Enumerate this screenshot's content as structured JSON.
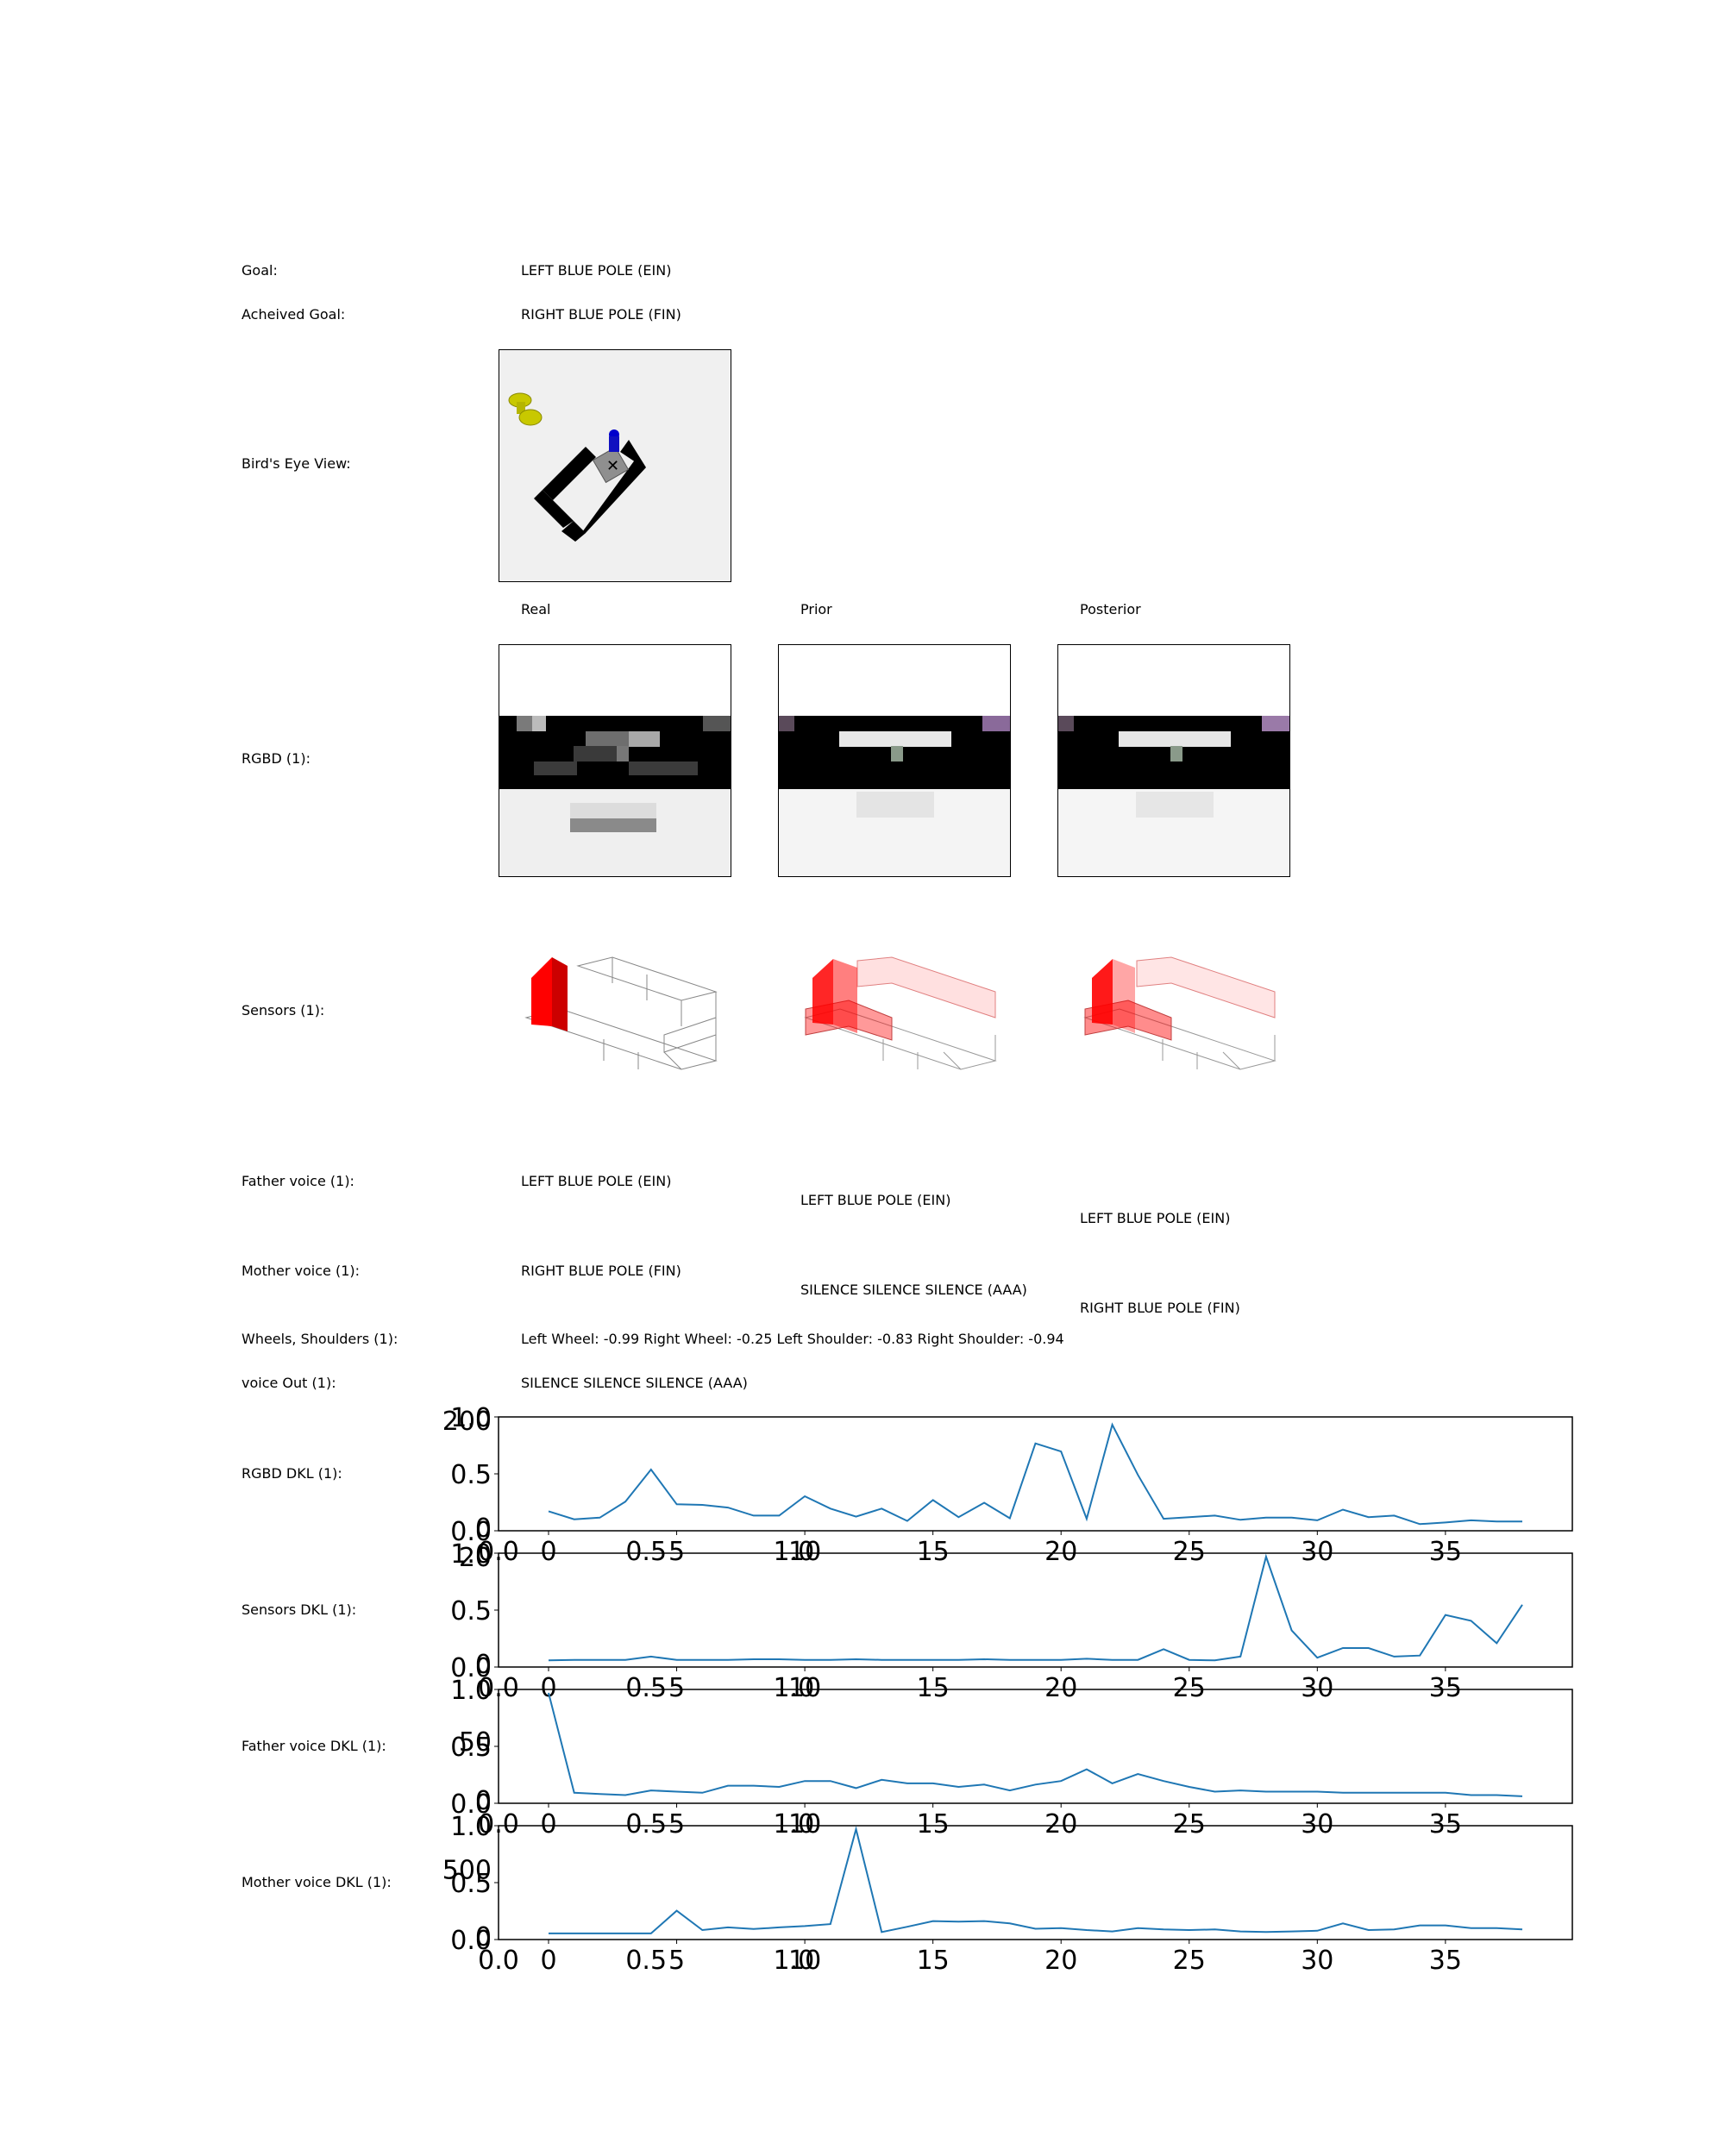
{
  "rows": {
    "goal": {
      "label": "Goal:",
      "value": "LEFT BLUE POLE (EIN)"
    },
    "achieved": {
      "label": "Acheived Goal:",
      "value": "RIGHT BLUE POLE (FIN)"
    },
    "birds_eye": {
      "label": "Bird's Eye View:"
    },
    "columns": {
      "real": "Real",
      "prior": "Prior",
      "posterior": "Posterior"
    },
    "rgbd": {
      "label": "RGBD (1):"
    },
    "sensors": {
      "label": "Sensors (1):"
    },
    "father_voice": {
      "label": "Father voice (1):",
      "real": "LEFT BLUE POLE (EIN)",
      "prior": "LEFT BLUE POLE (EIN)",
      "posterior": "LEFT BLUE POLE (EIN)"
    },
    "mother_voice": {
      "label": "Mother voice (1):",
      "real": "RIGHT BLUE POLE (FIN)",
      "prior": "SILENCE SILENCE SILENCE (AAA)",
      "posterior": "RIGHT BLUE POLE (FIN)"
    },
    "wheels": {
      "label": "Wheels, Shoulders (1):",
      "value": "Left Wheel: -0.99 Right Wheel: -0.25 Left Shoulder: -0.83 Right Shoulder: -0.94"
    },
    "voice_out": {
      "label": "voice Out (1):",
      "value": "SILENCE SILENCE SILENCE (AAA)"
    }
  },
  "colors": {
    "series": "#1f77b4",
    "sensor_red": "#ff0000"
  },
  "chart_data": [
    {
      "type": "line",
      "label": "RGBD DKL (1):",
      "x": [
        0,
        1,
        2,
        3,
        4,
        5,
        6,
        7,
        8,
        9,
        10,
        11,
        12,
        13,
        14,
        15,
        16,
        17,
        18,
        19,
        20,
        21,
        22,
        23,
        24,
        25,
        26,
        27,
        28,
        29,
        30,
        31,
        32,
        33,
        34,
        35,
        36,
        37,
        38
      ],
      "values": [
        30,
        15,
        18,
        48,
        108,
        43,
        42,
        37,
        22,
        22,
        58,
        35,
        20,
        35,
        12,
        51,
        19,
        46,
        17,
        157,
        142,
        16,
        192,
        98,
        16,
        19,
        22,
        14,
        18,
        18,
        13,
        33,
        19,
        22,
        6,
        9,
        13,
        11,
        11
      ],
      "ylim_primary": [
        0,
        1.0
      ],
      "yticks_primary": [
        "0.0",
        "0.5",
        "1.0"
      ],
      "ylim_secondary": [
        0,
        200
      ],
      "yticks_secondary": [
        "0",
        "200"
      ],
      "xticks_primary": [
        "0.0",
        "0.5",
        "1.0"
      ],
      "xticks_secondary": [
        "0",
        "5",
        "10",
        "15",
        "20",
        "25",
        "30",
        "35"
      ]
    },
    {
      "type": "line",
      "label": "Sensors DKL (1):",
      "x": [
        0,
        1,
        2,
        3,
        4,
        5,
        6,
        7,
        8,
        9,
        10,
        11,
        12,
        13,
        14,
        15,
        16,
        17,
        18,
        19,
        20,
        21,
        22,
        23,
        24,
        25,
        26,
        27,
        28,
        29,
        30,
        31,
        32,
        33,
        34,
        35,
        36,
        37,
        38
      ],
      "values": [
        0.6,
        0.7,
        0.7,
        0.7,
        1.3,
        0.7,
        0.7,
        0.7,
        0.8,
        0.8,
        0.7,
        0.7,
        0.8,
        0.7,
        0.7,
        0.7,
        0.7,
        0.8,
        0.7,
        0.7,
        0.7,
        0.9,
        0.7,
        0.7,
        2.7,
        0.7,
        0.6,
        1.3,
        20.0,
        6.2,
        1.1,
        2.9,
        2.9,
        1.3,
        1.5,
        9.1,
        8.0,
        3.8,
        11.0
      ],
      "ylim_primary": [
        0,
        1.0
      ],
      "yticks_primary": [
        "0.0",
        "0.5",
        "1.0"
      ],
      "ylim_secondary": [
        0,
        20
      ],
      "yticks_secondary": [
        "0",
        "20"
      ],
      "xticks_primary": [
        "0.0",
        "0.5",
        "1.0"
      ],
      "xticks_secondary": [
        "0",
        "5",
        "10",
        "15",
        "20",
        "25",
        "30",
        "35"
      ]
    },
    {
      "type": "line",
      "label": "Father voice DKL (1):",
      "x": [
        0,
        1,
        2,
        3,
        4,
        5,
        6,
        7,
        8,
        9,
        10,
        11,
        12,
        13,
        14,
        15,
        16,
        17,
        18,
        19,
        20,
        21,
        22,
        23,
        24,
        25,
        26,
        27,
        28,
        29,
        30,
        31,
        32,
        33,
        34,
        35,
        36,
        37,
        38
      ],
      "values": [
        91,
        6,
        5,
        4,
        8,
        7,
        6,
        12,
        12,
        11,
        16,
        16,
        10,
        17,
        14,
        14,
        11,
        13,
        8,
        13,
        16,
        26,
        14,
        22,
        16,
        11,
        7,
        8,
        7,
        7,
        7,
        6,
        6,
        6,
        6,
        6,
        4,
        4,
        3
      ],
      "ylim_primary": [
        0,
        1.0
      ],
      "yticks_primary": [
        "0.0",
        "0.5",
        "1.0"
      ],
      "ylim_secondary": [
        0,
        91
      ],
      "yticks_secondary": [
        "0",
        "50"
      ],
      "xticks_primary": [
        "0.0",
        "0.5",
        "1.0"
      ],
      "xticks_secondary": [
        "0",
        "5",
        "10",
        "15",
        "20",
        "25",
        "30",
        "35"
      ]
    },
    {
      "type": "line",
      "label": "Mother voice DKL (1):",
      "x": [
        0,
        1,
        2,
        3,
        4,
        5,
        6,
        7,
        8,
        9,
        10,
        11,
        12,
        13,
        14,
        15,
        16,
        17,
        18,
        19,
        20,
        21,
        22,
        23,
        24,
        25,
        26,
        27,
        28,
        29,
        30,
        31,
        32,
        33,
        34,
        35,
        36,
        37,
        38
      ],
      "values": [
        20,
        20,
        20,
        20,
        20,
        190,
        45,
        65,
        53,
        65,
        75,
        90,
        800,
        30,
        70,
        112,
        108,
        112,
        95,
        55,
        60,
        45,
        35,
        60,
        50,
        45,
        50,
        35,
        30,
        35,
        40,
        95,
        45,
        50,
        80,
        80,
        60,
        60,
        50
      ],
      "ylim_primary": [
        0,
        1.0
      ],
      "yticks_primary": [
        "0.0",
        "0.5",
        "1.0"
      ],
      "ylim_secondary": [
        0,
        800
      ],
      "yticks_secondary": [
        "0",
        "500"
      ],
      "xticks_primary": [
        "0.0",
        "0.5",
        "1.0"
      ],
      "xticks_secondary": [
        "0",
        "5",
        "10",
        "15",
        "20",
        "25",
        "30",
        "35"
      ]
    }
  ]
}
